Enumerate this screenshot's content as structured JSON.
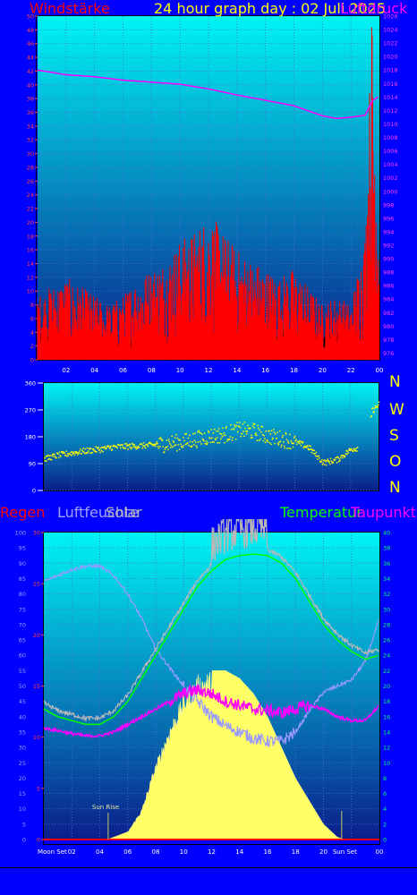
{
  "header": {
    "title": "24 hour graph day : 02 Juli 2025",
    "wind_label": "Windstärke",
    "pressure_label": "Luftdruck"
  },
  "wind_dir": {
    "letters": [
      "N",
      "W",
      "S",
      "O",
      "N"
    ]
  },
  "bottom_header": {
    "rain_label": "Regen",
    "humidity_label": "Luftfeuchte",
    "solar_label": "Solar",
    "temp_label": "Temperatur",
    "dew_label": "Taupunkt"
  },
  "colors": {
    "background": "#0000ff",
    "plot_top": "#00f4f4",
    "plot_bottom": "#0a1f8a",
    "wind": "#ff0000",
    "pressure": "#ff00ff",
    "direction": "#ffff00",
    "temperature": "#00ff00",
    "humidity": "#9a9aff",
    "solar": "#ffff66",
    "dewpoint": "#ff00ff",
    "rain": "#ff0000"
  },
  "chart_data": [
    {
      "type": "line",
      "title": "24 hour graph day : 02 Juli 2025",
      "x_ticks": [
        "02",
        "04",
        "06",
        "08",
        "10",
        "12",
        "14",
        "16",
        "18",
        "20",
        "22",
        "00"
      ],
      "y_left_label": "Windstärke",
      "y_left_ticks": [
        "0",
        "2",
        "4",
        "6",
        "8",
        "10",
        "12",
        "14",
        "16",
        "18",
        "20",
        "22",
        "24",
        "26",
        "28",
        "30",
        "32",
        "34",
        "36",
        "38",
        "40",
        "42",
        "44",
        "46",
        "48",
        "50"
      ],
      "y_left_range": [
        0,
        50
      ],
      "y_right_label": "Luftdruck",
      "y_right_ticks": [
        "976",
        "978",
        "980",
        "982",
        "984",
        "986",
        "988",
        "990",
        "992",
        "994",
        "996",
        "998",
        "1000",
        "1002",
        "1004",
        "1006",
        "1008",
        "1010",
        "1012",
        "1014",
        "1016",
        "1018",
        "1020",
        "1022",
        "1024",
        "1026"
      ],
      "y_right_range": [
        975,
        1026
      ],
      "series": [
        {
          "name": "Windstärke",
          "axis": "left",
          "x": [
            0,
            1,
            2,
            3,
            4,
            5,
            6,
            7,
            8,
            9,
            10,
            11,
            12,
            13,
            14,
            15,
            16,
            17,
            18,
            19,
            20,
            21,
            22,
            23,
            23.5,
            23.7,
            23.9,
            24
          ],
          "values": [
            7,
            8,
            9,
            8,
            7,
            6,
            7,
            9,
            10,
            11,
            13,
            14,
            16,
            14,
            12,
            11,
            10,
            9,
            10,
            8,
            6,
            7,
            6,
            14,
            40,
            30,
            20,
            12
          ]
        },
        {
          "name": "Luftdruck",
          "axis": "right",
          "x": [
            0,
            2,
            4,
            6,
            8,
            10,
            12,
            14,
            16,
            18,
            20,
            21,
            22,
            23,
            23.5,
            24
          ],
          "values": [
            1018,
            1017.3,
            1017,
            1016.5,
            1016.2,
            1015.9,
            1015.2,
            1014.3,
            1013.5,
            1012.7,
            1011.2,
            1010.8,
            1011,
            1011.3,
            1013.4,
            1014.2
          ]
        },
        {
          "name": "Gust background",
          "axis": "left",
          "x": [
            0,
            2,
            4,
            6,
            8,
            10,
            12,
            14,
            16,
            18,
            20,
            22,
            24
          ],
          "values": [
            3,
            3,
            3,
            2,
            2,
            2,
            3,
            3,
            3,
            3,
            3,
            3,
            2
          ]
        }
      ]
    },
    {
      "type": "scatter",
      "y_ticks": [
        "0",
        "90",
        "180",
        "270",
        "360"
      ],
      "y_range": [
        0,
        360
      ],
      "x_range": [
        0,
        24
      ],
      "series": [
        {
          "name": "Windrichtung",
          "x": [
            0,
            1,
            2,
            3,
            4,
            5,
            6,
            7,
            8,
            9,
            10,
            11,
            12,
            13,
            14,
            15,
            16,
            17,
            18,
            19,
            20,
            21,
            22,
            23,
            23.5,
            24
          ],
          "values": [
            108,
            120,
            128,
            135,
            140,
            148,
            150,
            152,
            155,
            160,
            165,
            175,
            185,
            190,
            205,
            200,
            185,
            175,
            165,
            145,
            95,
            105,
            140,
            150,
            270,
            290
          ]
        }
      ]
    },
    {
      "type": "line",
      "x_ticks": [
        "02",
        "04",
        "06",
        "08",
        "10",
        "12",
        "14",
        "16",
        "18",
        "20",
        "22",
        "00"
      ],
      "annotations": [
        "Moon Set",
        "Sun Rise",
        "Sun Set"
      ],
      "y_left_ticks": [
        "0",
        "5",
        "10",
        "15",
        "20",
        "25",
        "30",
        "35",
        "40",
        "45",
        "50",
        "55",
        "60",
        "65",
        "70",
        "75",
        "80",
        "85",
        "90",
        "95",
        "100"
      ],
      "y_left_range": [
        0,
        100
      ],
      "y_rain_ticks": [
        "0",
        "5",
        "10",
        "15",
        "20",
        "25",
        "30"
      ],
      "y_rain_range": [
        0,
        30
      ],
      "y_right_ticks": [
        "0",
        "2",
        "4",
        "6",
        "8",
        "10",
        "12",
        "14",
        "16",
        "18",
        "20",
        "22",
        "24",
        "26",
        "28",
        "30",
        "32",
        "34",
        "36",
        "38",
        "40"
      ],
      "y_right_range": [
        0,
        40
      ],
      "series": [
        {
          "name": "Temperatur",
          "axis": "right",
          "x": [
            0,
            1,
            2,
            3,
            4,
            5,
            6,
            7,
            8,
            9,
            10,
            11,
            12,
            13,
            14,
            15,
            16,
            17,
            18,
            19,
            20,
            21,
            22,
            23,
            24
          ],
          "values": [
            17,
            16,
            15.5,
            15,
            15,
            16,
            18,
            21,
            24,
            27,
            30,
            33,
            35,
            36.5,
            37,
            37.2,
            37,
            36,
            34,
            31,
            28,
            26,
            24.5,
            23.5,
            24
          ]
        },
        {
          "name": "Luftfeuchte",
          "axis": "left",
          "x": [
            0,
            1,
            2,
            3,
            4,
            5,
            6,
            7,
            8,
            9,
            10,
            11,
            12,
            13,
            14,
            15,
            16,
            17,
            18,
            19,
            20,
            21,
            22,
            23,
            24
          ],
          "values": [
            84,
            86,
            88,
            89,
            89,
            86,
            80,
            72,
            62,
            56,
            50,
            45,
            40,
            37,
            35,
            33,
            32,
            32,
            35,
            42,
            48,
            50,
            52,
            58,
            72
          ]
        },
        {
          "name": "Taupunkt",
          "axis": "right",
          "x": [
            0,
            1,
            2,
            3,
            4,
            5,
            6,
            7,
            8,
            9,
            10,
            11,
            12,
            13,
            14,
            15,
            16,
            17,
            18,
            19,
            20,
            21,
            22,
            23,
            24
          ],
          "values": [
            14.5,
            14.2,
            13.8,
            13.5,
            13.5,
            14,
            15,
            16,
            17,
            18,
            19,
            19.5,
            19,
            18,
            17.5,
            17,
            16.8,
            16.5,
            17,
            17.5,
            17,
            16,
            15.5,
            15.5,
            17.5
          ]
        },
        {
          "name": "Solar",
          "axis": "right",
          "x": [
            0,
            4.5,
            5,
            6,
            7,
            8,
            9,
            10,
            11,
            12,
            13,
            14,
            15,
            16,
            17,
            18,
            19,
            20,
            21,
            21.5,
            24
          ],
          "values": [
            0,
            0,
            0.3,
            1,
            4,
            10,
            15,
            19,
            21.5,
            22,
            22,
            21,
            19,
            16,
            12,
            8,
            5,
            2,
            0.3,
            0,
            0
          ]
        },
        {
          "name": "Regen",
          "axis": "rain",
          "x": [
            0,
            24
          ],
          "values": [
            0,
            0
          ]
        }
      ]
    }
  ]
}
